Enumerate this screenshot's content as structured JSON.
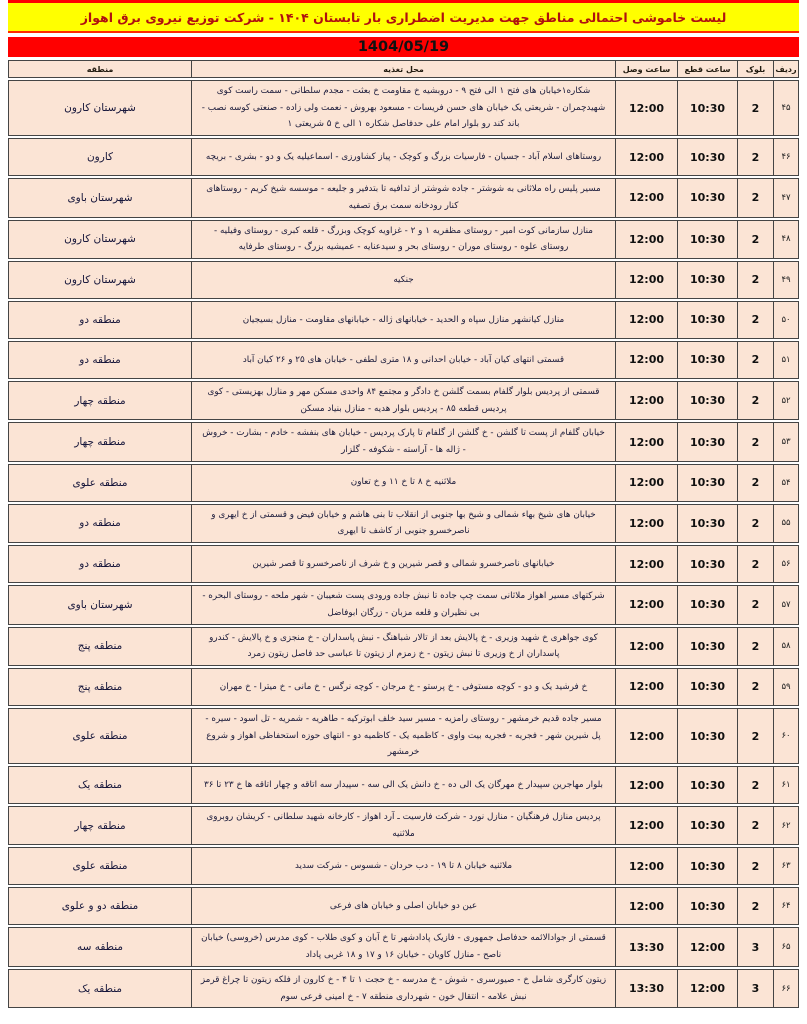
{
  "header": {
    "title": "لیست خاموشی احتمالی مناطق جهت مدیریت اضطراری بار تابستان ۱۴۰۴ - شرکت توزیع نیروی برق اهواز",
    "date": "1404/05/19"
  },
  "colors": {
    "title_bg": "#ffff00",
    "title_text": "#b01010",
    "date_bg": "#ff0000",
    "date_text": "#111111",
    "cell_bg": "#fbe4d5",
    "border": "#454545",
    "cell_text": "#1a1a3a"
  },
  "table": {
    "columns": {
      "row": "ردیف",
      "block": "بلوک",
      "cut": "ساعت قطع",
      "reconnect": "ساعت وصل",
      "location": "محل تغذیه",
      "region": "منطقه"
    },
    "rows": [
      {
        "row": "۴۵",
        "block": "2",
        "cut": "10:30",
        "reconnect": "12:00",
        "location": "شکاره۱خیابان های فتح ۱ الی فتح ۹ - دروبشیه خ مقاومت خ بعثت - مجدم سلطانی - سمت راست کوی شهیدچمران - شریعتی یک خیابان های حسن فریسات - مسعود بهروش - نعمت ولی زاده - صنعتی کوسه نصب - باند کند رو بلوار امام علی حدفاصل شکاره ۱ الی خ ۵ شریعتی ۱",
        "region": "شهرستان کارون"
      },
      {
        "row": "۴۶",
        "block": "2",
        "cut": "10:30",
        "reconnect": "12:00",
        "location": "روستاهای اسلام آباد - جسیان - فارسیات بزرگ و کوچک - پیاز کشاورزی - اسماعیلیه یک و دو - بشری - بریچه",
        "region": "کارون"
      },
      {
        "row": "۴۷",
        "block": "2",
        "cut": "10:30",
        "reconnect": "12:00",
        "location": "مسیر پلیس راه ملاثانی به شوشتر - جاده شوشتر از ثدافیه تا بتدفیر و جلیعه - موسسه شیخ کریم - روستاهای کنار رودخانه سمت برق تصفیه",
        "region": "شهرستان باوی"
      },
      {
        "row": "۴۸",
        "block": "2",
        "cut": "10:30",
        "reconnect": "12:00",
        "location": "منازل سازمانی کوت امیر - روستای مظفریه ۱ و ۲ - غزاویه کوچک وبزرگ - قلعه کبری - روستای وفیلیه - روستای علوه - روستای موران - روستای بحر و سیدعنایه - عمیشیه بزرگ - روستای طرفایه",
        "region": "شهرستان کارون"
      },
      {
        "row": "۴۹",
        "block": "2",
        "cut": "10:30",
        "reconnect": "12:00",
        "location": "جنکیه",
        "region": "شهرستان کارون"
      },
      {
        "row": "۵۰",
        "block": "2",
        "cut": "10:30",
        "reconnect": "12:00",
        "location": "منازل کیانشهر منازل سپاه و الحدید - خیابانهای ژاله - خیابانهای مقاومت - منازل بسیجیان",
        "region": "منطقه دو"
      },
      {
        "row": "۵۱",
        "block": "2",
        "cut": "10:30",
        "reconnect": "12:00",
        "location": "قسمتی انتهای کیان آباد - خیابان احدانی و ۱۸ متری لطفی - خیابان های ۲۵ و ۲۶ کیان آباد",
        "region": "منطقه دو"
      },
      {
        "row": "۵۲",
        "block": "2",
        "cut": "10:30",
        "reconnect": "12:00",
        "location": "قسمتی از پردیس بلوار گلفام بسمت گلشن خ دادگر و مجتمع ۸۴ واحدی مسکن مهر و منازل بهزیستی - کوی پردیس قطعه ۸۵ - پردیس بلوار هدیه - منازل بنیاد مسکن",
        "region": "منطقه چهار"
      },
      {
        "row": "۵۳",
        "block": "2",
        "cut": "10:30",
        "reconnect": "12:00",
        "location": "خیابان گلفام از پست تا گلشن - خ گلشن از گلفام تا پارک پردیس - خیابان های بنفشه - خادم - بشارت - خروش - ژاله ها - آراسته - شکوفه - گلزار",
        "region": "منطقه چهار"
      },
      {
        "row": "۵۴",
        "block": "2",
        "cut": "10:30",
        "reconnect": "12:00",
        "location": "ملاثنیه خ ۸ تا خ ۱۱ و خ تعاون",
        "region": "منطقه علوی"
      },
      {
        "row": "۵۵",
        "block": "2",
        "cut": "10:30",
        "reconnect": "12:00",
        "location": "خیابان های شیخ بهاء شمالی و شیخ بها جنوبی از انقلاب تا بنی هاشم و خیابان فیض و قسمتی از خ ایهری و ناصرخسرو جنوبی از کاشف تا ایهری",
        "region": "منطقه دو"
      },
      {
        "row": "۵۶",
        "block": "2",
        "cut": "10:30",
        "reconnect": "12:00",
        "location": "خیابانهای ناصرخسرو شمالی و قصر شیرین و خ شرف از ناصرخسرو تا قصر شیرین",
        "region": "منطقه دو"
      },
      {
        "row": "۵۷",
        "block": "2",
        "cut": "10:30",
        "reconnect": "12:00",
        "location": "شرکتهای مسیر اهواز ملاثانی سمت چپ جاده تا نبش جاده ورودی پست شعیبان - شهر ملحه - روستای البحره - بی نظیران و قلعه مزبان - زرگان ابوفاضل",
        "region": "شهرستان باوی"
      },
      {
        "row": "۵۸",
        "block": "2",
        "cut": "10:30",
        "reconnect": "12:00",
        "location": "کوی جواهری خ شهید وزیری - خ پالایش بعد از تالار شباهنگ - نبش پاسداران - خ منجزی و خ پالایش - کندرو پاسداران از خ وزیری تا نبش زیتون - خ زمزم از زیتون تا عباسی حد فاصل زیتون زمرد",
        "region": "منطقه پنج"
      },
      {
        "row": "۵۹",
        "block": "2",
        "cut": "10:30",
        "reconnect": "12:00",
        "location": "خ فرشید یک و دو - کوچه مستوفی - خ پرستو - خ مرجان - کوچه نرگس - خ مانی - خ میترا - خ مهران",
        "region": "منطقه پنج"
      },
      {
        "row": "۶۰",
        "block": "2",
        "cut": "10:30",
        "reconnect": "12:00",
        "location": "مسیر جاده قدیم خرمشهر - روستای رامزیه - مسیر سید خلف ابوترکیه - طاهریه - شمریه - تل اسود - سیره - پل شیرین شهر - فجریه - فجریه بیت واوی - کاظمیه یک - کاظمیه دو - انتهای حوزه استحفاظی اهواز و شروع خرمشهر",
        "region": "منطقه علوی"
      },
      {
        "row": "۶۱",
        "block": "2",
        "cut": "10:30",
        "reconnect": "12:00",
        "location": "بلوار مهاجرین سپیدار خ مهرگان یک الی ده - خ دانش یک الی سه - سپیدار سه اتاقه و چهار اتاقه ها خ ۲۳ تا ۳۶",
        "region": "منطقه یک"
      },
      {
        "row": "۶۲",
        "block": "2",
        "cut": "10:30",
        "reconnect": "12:00",
        "location": "پردیس منازل فرهنگیان - منازل نورد - شرکت فارسیت ـ آرد اهواز - کارخانه شهید سلطانی - کریشان روبروی ملاثنیه",
        "region": "منطقه چهار"
      },
      {
        "row": "۶۳",
        "block": "2",
        "cut": "10:30",
        "reconnect": "12:00",
        "location": "ملاثنیه خیابان ۸ تا ۱۹ - دب حردان - شسوس - شرکت سدید",
        "region": "منطقه علوی"
      },
      {
        "row": "۶۴",
        "block": "2",
        "cut": "10:30",
        "reconnect": "12:00",
        "location": "عین دو خیابان اصلی و خیابان های فرعی",
        "region": "منطقه دو و علوی"
      },
      {
        "row": "۶۵",
        "block": "3",
        "cut": "12:00",
        "reconnect": "13:30",
        "location": "قسمتی از جوادالائمه حدفاصل جمهوری - فازیک پادادشهر تا خ آبان و کوی طلاب - کوی مدرس (خروسی) خیابان ناصح - منازل کاویان - خیابان ۱۶ و ۱۷ و ۱۸ غربی پاداد",
        "region": "منطقه سه"
      },
      {
        "row": "۶۶",
        "block": "3",
        "cut": "12:00",
        "reconnect": "13:30",
        "location": "زیتون کارگری شامل خ - صیورسری - شوش - خ مدرسه - خ حجت ۱ تا ۴ - خ کارون از فلکه زیتون تا چراغ قرمز نبش علامه - انتقال خون - شهرداری منطقه ۷ - خ امینی فرعی سوم",
        "region": "منطقه یک"
      }
    ]
  }
}
